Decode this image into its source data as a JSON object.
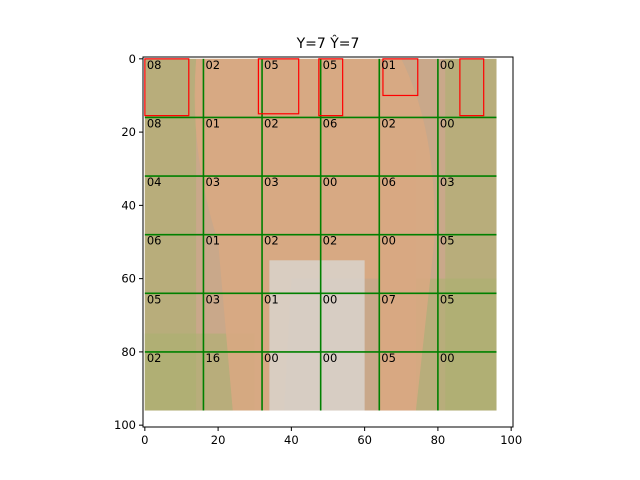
{
  "chart_data": {
    "type": "heatmap",
    "title": "Y=7 Ŷ=7",
    "xlabel": "",
    "ylabel": "",
    "xlim": [
      -0.5,
      100.5
    ],
    "ylim": [
      100.5,
      -0.5
    ],
    "x_ticks": [
      0,
      20,
      40,
      60,
      80,
      100
    ],
    "y_ticks": [
      0,
      20,
      40,
      60,
      80,
      100
    ],
    "image_extent": [
      0,
      96,
      0,
      96
    ],
    "grid": true,
    "grid_color": "#008000",
    "grid_lines": [
      16,
      32,
      48,
      64,
      80
    ],
    "cell_size": 16,
    "cell_labels": [
      [
        "08",
        "02",
        "05",
        "05",
        "01",
        "00"
      ],
      [
        "08",
        "01",
        "02",
        "06",
        "02",
        "00"
      ],
      [
        "04",
        "03",
        "03",
        "00",
        "06",
        "03"
      ],
      [
        "06",
        "01",
        "02",
        "02",
        "00",
        "05"
      ],
      [
        "05",
        "03",
        "01",
        "00",
        "07",
        "05"
      ],
      [
        "02",
        "16",
        "00",
        "00",
        "05",
        "00"
      ]
    ],
    "boxes_color": "#ff0000",
    "boxes": [
      {
        "x0": 0,
        "y0": 0,
        "x1": 12,
        "y1": 15.5
      },
      {
        "x0": 31,
        "y0": 0,
        "x1": 42,
        "y1": 15
      },
      {
        "x0": 47.5,
        "y0": 0,
        "x1": 54,
        "y1": 15.5
      },
      {
        "x0": 65,
        "y0": 0,
        "x1": 74.5,
        "y1": 10
      },
      {
        "x0": 86,
        "y0": 0,
        "x1": 92.5,
        "y1": 15.5
      }
    ]
  },
  "colors": {
    "background": "#ffffff",
    "image_base": "#c9a88a",
    "image_green": "#a9b070",
    "animal": "#d8a882",
    "legs": "#d9d3cc"
  }
}
